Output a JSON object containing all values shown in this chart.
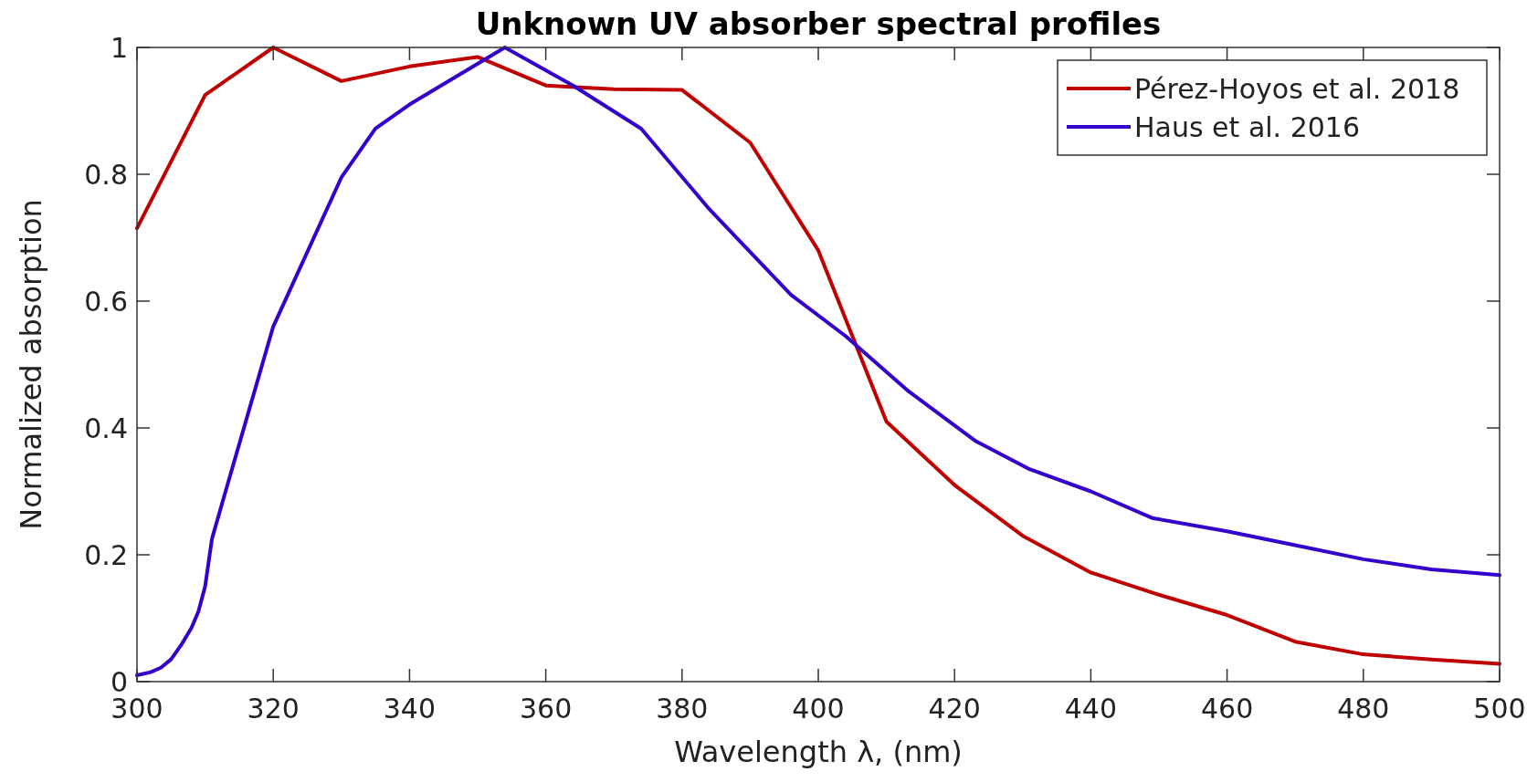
{
  "chart_data": {
    "type": "line",
    "title": "Unknown UV absorber spectral profiles",
    "xlabel": "Wavelength λ, (nm)",
    "ylabel": "Normalized absorption",
    "xlim": [
      300,
      500
    ],
    "xticks": [
      300,
      320,
      340,
      360,
      380,
      400,
      420,
      440,
      460,
      480,
      500
    ],
    "ylim": [
      0,
      1
    ],
    "yticks": [
      0,
      0.2,
      0.4,
      0.6,
      0.8,
      1
    ],
    "grid": false,
    "legend": "top right",
    "marker": "none",
    "line_style": "solid",
    "series": [
      {
        "name": "Pérez-Hoyos et al. 2018",
        "color": "#c00000",
        "x": [
          300,
          310,
          320,
          330,
          340,
          350,
          360,
          370,
          380,
          390,
          400,
          410,
          420,
          430,
          440,
          450,
          460,
          470,
          480,
          490,
          500
        ],
        "values": [
          0.715,
          0.925,
          1.0,
          0.947,
          0.97,
          0.985,
          0.94,
          0.934,
          0.933,
          0.85,
          0.68,
          0.41,
          0.31,
          0.23,
          0.172,
          0.137,
          0.105,
          0.063,
          0.043,
          0.035,
          0.028
        ]
      },
      {
        "name": "Haus et al. 2016",
        "color": "#3300cc",
        "x": [
          300,
          302,
          303.5,
          305,
          306.5,
          308,
          309,
          310,
          311,
          313,
          320,
          330,
          335,
          340,
          354,
          364,
          374,
          384,
          396,
          404,
          413,
          423,
          431,
          440,
          449,
          460,
          470,
          480,
          490,
          500
        ],
        "values": [
          0.01,
          0.015,
          0.022,
          0.035,
          0.058,
          0.085,
          0.11,
          0.15,
          0.225,
          0.3,
          0.56,
          0.795,
          0.872,
          0.91,
          1.0,
          0.94,
          0.872,
          0.745,
          0.61,
          0.545,
          0.46,
          0.38,
          0.335,
          0.3,
          0.258,
          0.237,
          0.215,
          0.193,
          0.177,
          0.168
        ]
      }
    ]
  }
}
